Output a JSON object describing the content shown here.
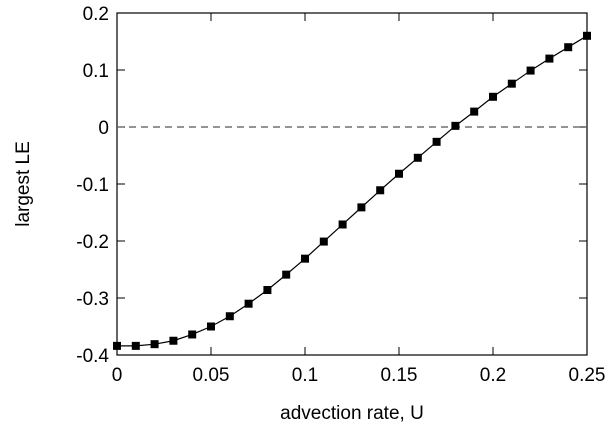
{
  "chart_data": {
    "type": "line",
    "title": "",
    "xlabel": "advection rate, U",
    "ylabel": "largest LE",
    "xlim": [
      0,
      0.25
    ],
    "ylim": [
      -0.4,
      0.2
    ],
    "x_ticks": [
      0,
      0.05,
      0.1,
      0.15,
      0.2,
      0.25
    ],
    "x_tick_labels": [
      "0",
      "0.05",
      "0.1",
      "0.15",
      "0.2",
      "0.25"
    ],
    "y_ticks": [
      -0.4,
      -0.3,
      -0.2,
      -0.1,
      0,
      0.1,
      0.2
    ],
    "y_tick_labels": [
      "-0.4",
      "-0.3",
      "-0.2",
      "-0.1",
      "0",
      "0.1",
      "0.2"
    ],
    "grid": false,
    "reference_line": {
      "y": 0,
      "style": "dashed",
      "color": "#555555"
    },
    "series": [
      {
        "marker": "square",
        "color": "#000000",
        "x": [
          0,
          0.01,
          0.02,
          0.03,
          0.04,
          0.05,
          0.06,
          0.07,
          0.08,
          0.09,
          0.1,
          0.11,
          0.12,
          0.13,
          0.14,
          0.15,
          0.16,
          0.17,
          0.18,
          0.19,
          0.2,
          0.21,
          0.22,
          0.23,
          0.24,
          0.25
        ],
        "y": [
          -0.384,
          -0.384,
          -0.381,
          -0.375,
          -0.364,
          -0.35,
          -0.332,
          -0.31,
          -0.286,
          -0.259,
          -0.231,
          -0.201,
          -0.171,
          -0.141,
          -0.111,
          -0.082,
          -0.054,
          -0.026,
          0.002,
          0.027,
          0.053,
          0.076,
          0.099,
          0.12,
          0.14,
          0.16
        ]
      }
    ]
  }
}
